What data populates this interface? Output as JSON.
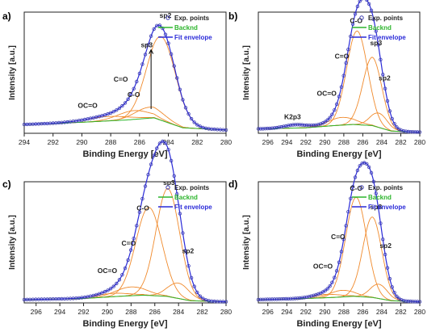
{
  "colors": {
    "exp_points": "#3a3ab0",
    "background": "#2db52d",
    "fit_envelope": "#2a2ad8",
    "component": "#f08a2c",
    "axis": "#222222"
  },
  "chart_data": [
    {
      "type": "line",
      "panel_label": "a)",
      "xlabel": "Binding Energy [eV]",
      "ylabel": "Intensity [a.u.]",
      "xlim": [
        294,
        280
      ],
      "xticks": [
        "294",
        "292",
        "290",
        "288",
        "286",
        "284",
        "282",
        "280"
      ],
      "legend": [
        "Exp. points",
        "Backnd",
        "Fit envelope"
      ],
      "background": [
        [
          294,
          0.08
        ],
        [
          290,
          0.1
        ],
        [
          287,
          0.12
        ],
        [
          285,
          0.14
        ],
        [
          283,
          0.05
        ],
        [
          280,
          0.03
        ]
      ],
      "components": [
        {
          "center": 284.5,
          "height": 0.76,
          "width": 1.0
        },
        {
          "center": 285.3,
          "height": 0.1,
          "width": 1.0
        },
        {
          "center": 286.4,
          "height": 0.08,
          "width": 1.1
        },
        {
          "center": 288.2,
          "height": 0.04,
          "width": 1.5
        }
      ],
      "annotations": [
        {
          "text": "sp2",
          "x": 284.2,
          "y": 1.05
        },
        {
          "text": "sp3",
          "x": 285.5,
          "y": 0.78,
          "arrow_to": [
            285.2,
            0.22
          ]
        },
        {
          "text": "C-O",
          "x": 286.4,
          "y": 0.33
        },
        {
          "text": "C=O",
          "x": 287.3,
          "y": 0.47
        },
        {
          "text": "OC=O",
          "x": 289.6,
          "y": 0.23
        }
      ]
    },
    {
      "type": "line",
      "panel_label": "b)",
      "xlabel": "Binding Energy [eV]",
      "ylabel": "Intensity [a.u.]",
      "xlim": [
        297,
        280
      ],
      "xticks": [
        "296",
        "294",
        "292",
        "290",
        "288",
        "286",
        "284",
        "282",
        "280"
      ],
      "legend": [
        "Exp. points",
        "Backnd",
        "Fit envelope"
      ],
      "background": [
        [
          297,
          0.04
        ],
        [
          292,
          0.05
        ],
        [
          289,
          0.07
        ],
        [
          287,
          0.08
        ],
        [
          285,
          0.07
        ],
        [
          283,
          0.02
        ],
        [
          280,
          0.01
        ]
      ],
      "components": [
        {
          "center": 286.6,
          "height": 0.85,
          "width": 1.1
        },
        {
          "center": 285.0,
          "height": 0.62,
          "width": 1.0
        },
        {
          "center": 284.3,
          "height": 0.13,
          "width": 0.9
        },
        {
          "center": 288.2,
          "height": 0.07,
          "width": 1.4
        },
        {
          "center": 293.0,
          "height": 0.03,
          "width": 1.2
        }
      ],
      "annotations": [
        {
          "text": "C-O",
          "x": 286.7,
          "y": 1.0
        },
        {
          "text": "sp3",
          "x": 284.6,
          "y": 0.8
        },
        {
          "text": "C=O",
          "x": 288.2,
          "y": 0.68
        },
        {
          "text": "sp2",
          "x": 283.7,
          "y": 0.48
        },
        {
          "text": "OC=O",
          "x": 289.8,
          "y": 0.34
        },
        {
          "text": "K2p3",
          "x": 293.4,
          "y": 0.13
        }
      ]
    },
    {
      "type": "line",
      "panel_label": "c)",
      "xlabel": "Binding Energy [eV]",
      "ylabel": "Intensity [a.u.]",
      "xlim": [
        297,
        280
      ],
      "xticks": [
        "296",
        "294",
        "292",
        "290",
        "288",
        "286",
        "284",
        "282",
        "280"
      ],
      "legend": [
        "Exp. points",
        "Backnd",
        "Fit envelope"
      ],
      "background": [
        [
          297,
          0.03
        ],
        [
          292,
          0.04
        ],
        [
          289,
          0.06
        ],
        [
          287,
          0.07
        ],
        [
          285,
          0.06
        ],
        [
          283,
          0.02
        ],
        [
          280,
          0.01
        ]
      ],
      "components": [
        {
          "center": 286.5,
          "height": 0.8,
          "width": 1.1
        },
        {
          "center": 284.9,
          "height": 0.98,
          "width": 1.0
        },
        {
          "center": 284.0,
          "height": 0.14,
          "width": 0.9
        },
        {
          "center": 288.0,
          "height": 0.08,
          "width": 1.3
        },
        {
          "center": 289.6,
          "height": 0.03,
          "width": 1.5
        }
      ],
      "annotations": [
        {
          "text": "sp3",
          "x": 284.8,
          "y": 1.07
        },
        {
          "text": "C-O",
          "x": 287.0,
          "y": 0.84
        },
        {
          "text": "C=O",
          "x": 288.2,
          "y": 0.52
        },
        {
          "text": "sp2",
          "x": 283.2,
          "y": 0.45
        },
        {
          "text": "OC=O",
          "x": 290.0,
          "y": 0.27
        }
      ]
    },
    {
      "type": "line",
      "panel_label": "d)",
      "xlabel": "Binding Energy [eV]",
      "ylabel": "Intensity [a.u.]",
      "xlim": [
        297,
        280
      ],
      "xticks": [
        "296",
        "294",
        "292",
        "290",
        "288",
        "286",
        "284",
        "282",
        "280"
      ],
      "legend": [
        "Exp. points",
        "Backnd",
        "Fit envelope"
      ],
      "background": [
        [
          297,
          0.03
        ],
        [
          292,
          0.04
        ],
        [
          289,
          0.05
        ],
        [
          287,
          0.06
        ],
        [
          285,
          0.05
        ],
        [
          283,
          0.02
        ],
        [
          280,
          0.01
        ]
      ],
      "components": [
        {
          "center": 286.7,
          "height": 0.9,
          "width": 1.1
        },
        {
          "center": 285.0,
          "height": 0.73,
          "width": 1.0
        },
        {
          "center": 284.3,
          "height": 0.13,
          "width": 0.9
        },
        {
          "center": 288.2,
          "height": 0.06,
          "width": 1.3
        },
        {
          "center": 289.8,
          "height": 0.03,
          "width": 1.5
        }
      ],
      "annotations": [
        {
          "text": "C-O",
          "x": 286.7,
          "y": 1.02
        },
        {
          "text": "sp3",
          "x": 284.6,
          "y": 0.85
        },
        {
          "text": "C=O",
          "x": 288.6,
          "y": 0.58
        },
        {
          "text": "sp2",
          "x": 283.6,
          "y": 0.5
        },
        {
          "text": "OC=O",
          "x": 290.2,
          "y": 0.31
        }
      ]
    }
  ]
}
